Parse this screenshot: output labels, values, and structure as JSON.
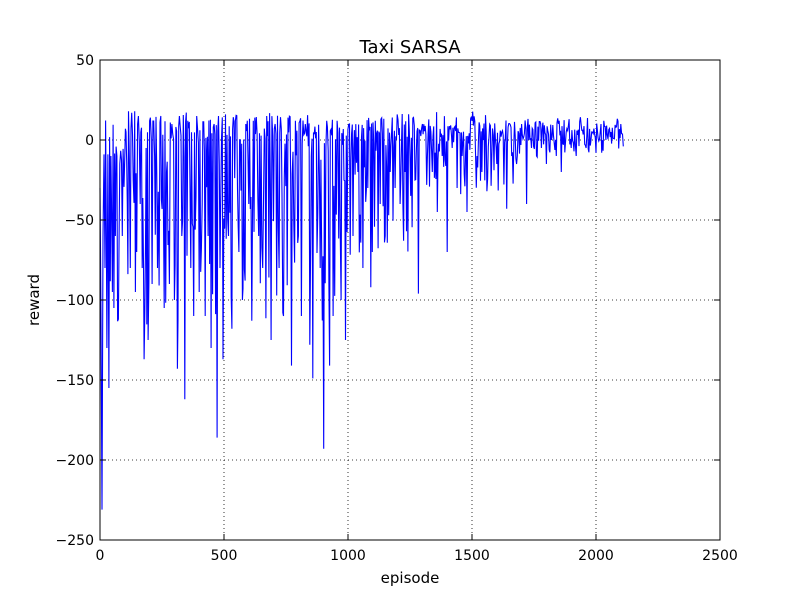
{
  "chart_data": {
    "type": "line",
    "title": "Taxi SARSA",
    "xlabel": "episode",
    "ylabel": "reward",
    "xlim": [
      0,
      2500
    ],
    "ylim": [
      -250,
      50
    ],
    "xticks": [
      0,
      500,
      1000,
      1500,
      2000,
      2500
    ],
    "yticks": [
      -250,
      -200,
      -150,
      -100,
      -50,
      0,
      50
    ],
    "xtick_labels": [
      "0",
      "500",
      "1000",
      "1500",
      "2000",
      "2500"
    ],
    "ytick_labels": [
      "−250",
      "−200",
      "−150",
      "−100",
      "−50",
      "0",
      "50"
    ],
    "grid": true,
    "grid_style": "dotted",
    "series": [
      {
        "color": "#0000ff",
        "x_start": 0,
        "x_end": 2110,
        "noise_seed": 7,
        "envelope_note_points": "Estimated sampled reward trace read from the plot (episode, reward).",
        "points": [
          [
            0,
            -30
          ],
          [
            4,
            -110
          ],
          [
            8,
            -231
          ],
          [
            12,
            -60
          ],
          [
            16,
            -9
          ],
          [
            20,
            -80
          ],
          [
            28,
            -130
          ],
          [
            32,
            -9
          ],
          [
            36,
            -155
          ],
          [
            44,
            -10
          ],
          [
            50,
            -95
          ],
          [
            56,
            -105
          ],
          [
            62,
            -60
          ],
          [
            68,
            -10
          ],
          [
            74,
            -112
          ],
          [
            80,
            -15
          ],
          [
            90,
            -60
          ],
          [
            100,
            -10
          ],
          [
            105,
            5
          ],
          [
            110,
            -40
          ],
          [
            115,
            18
          ],
          [
            122,
            -80
          ],
          [
            128,
            17
          ],
          [
            134,
            -25
          ],
          [
            140,
            18
          ],
          [
            148,
            -70
          ],
          [
            155,
            15
          ],
          [
            162,
            -40
          ],
          [
            170,
            -80
          ],
          [
            178,
            -137
          ],
          [
            186,
            -5
          ],
          [
            194,
            -125
          ],
          [
            200,
            12
          ],
          [
            210,
            -90
          ],
          [
            220,
            -10
          ],
          [
            232,
            -80
          ],
          [
            245,
            15
          ],
          [
            256,
            -50
          ],
          [
            268,
            -20
          ],
          [
            280,
            -90
          ],
          [
            290,
            10
          ],
          [
            300,
            -100
          ],
          [
            312,
            -143
          ],
          [
            320,
            15
          ],
          [
            330,
            -60
          ],
          [
            342,
            -162
          ],
          [
            354,
            12
          ],
          [
            366,
            -80
          ],
          [
            378,
            -110
          ],
          [
            390,
            15
          ],
          [
            400,
            -95
          ],
          [
            412,
            -40
          ],
          [
            424,
            -110
          ],
          [
            436,
            -60
          ],
          [
            448,
            -130
          ],
          [
            460,
            10
          ],
          [
            472,
            -186
          ],
          [
            478,
            15
          ],
          [
            484,
            -80
          ],
          [
            496,
            -137
          ],
          [
            506,
            16
          ],
          [
            518,
            -60
          ],
          [
            532,
            -118
          ],
          [
            546,
            12
          ],
          [
            560,
            -70
          ],
          [
            574,
            -100
          ],
          [
            588,
            10
          ],
          [
            600,
            -40
          ],
          [
            612,
            -113
          ],
          [
            624,
            14
          ],
          [
            640,
            -60
          ],
          [
            656,
            -80
          ],
          [
            672,
            15
          ],
          [
            690,
            -125
          ],
          [
            706,
            10
          ],
          [
            722,
            -80
          ],
          [
            740,
            -110
          ],
          [
            758,
            14
          ],
          [
            772,
            -141
          ],
          [
            788,
            12
          ],
          [
            800,
            -60
          ],
          [
            812,
            -110
          ],
          [
            828,
            10
          ],
          [
            846,
            -128
          ],
          [
            858,
            -149
          ],
          [
            872,
            5
          ],
          [
            888,
            -80
          ],
          [
            902,
            -193
          ],
          [
            914,
            12
          ],
          [
            926,
            -141
          ],
          [
            940,
            -110
          ],
          [
            956,
            12
          ],
          [
            972,
            -100
          ],
          [
            990,
            -125
          ],
          [
            1006,
            10
          ],
          [
            1020,
            -60
          ],
          [
            1040,
            -20
          ],
          [
            1060,
            -80
          ],
          [
            1080,
            -30
          ],
          [
            1092,
            -92
          ],
          [
            1110,
            12
          ],
          [
            1130,
            -40
          ],
          [
            1150,
            -60
          ],
          [
            1170,
            -20
          ],
          [
            1190,
            -30
          ],
          [
            1210,
            -40
          ],
          [
            1230,
            -20
          ],
          [
            1250,
            -10
          ],
          [
            1270,
            -25
          ],
          [
            1284,
            -96
          ],
          [
            1300,
            10
          ],
          [
            1320,
            -10
          ],
          [
            1340,
            -20
          ],
          [
            1360,
            -45
          ],
          [
            1380,
            -10
          ],
          [
            1400,
            -70
          ],
          [
            1420,
            -5
          ],
          [
            1440,
            -30
          ],
          [
            1460,
            -10
          ],
          [
            1480,
            -45
          ],
          [
            1500,
            12
          ],
          [
            1520,
            -10
          ],
          [
            1540,
            -20
          ],
          [
            1560,
            -32
          ],
          [
            1580,
            -10
          ],
          [
            1600,
            -15
          ],
          [
            1620,
            5
          ],
          [
            1640,
            -43
          ],
          [
            1660,
            -10
          ],
          [
            1680,
            -15
          ],
          [
            1700,
            10
          ],
          [
            1720,
            -40
          ],
          [
            1740,
            -5
          ],
          [
            1760,
            -10
          ],
          [
            1780,
            -5
          ],
          [
            1800,
            -15
          ],
          [
            1820,
            0
          ],
          [
            1840,
            -10
          ],
          [
            1860,
            -20
          ],
          [
            1880,
            5
          ],
          [
            1900,
            -5
          ],
          [
            1920,
            -10
          ],
          [
            1940,
            10
          ],
          [
            1960,
            -5
          ],
          [
            1980,
            0
          ],
          [
            2000,
            -8
          ],
          [
            2020,
            10
          ],
          [
            2040,
            0
          ],
          [
            2060,
            5
          ],
          [
            2080,
            8
          ],
          [
            2100,
            10
          ],
          [
            2110,
            -4
          ]
        ]
      }
    ]
  }
}
